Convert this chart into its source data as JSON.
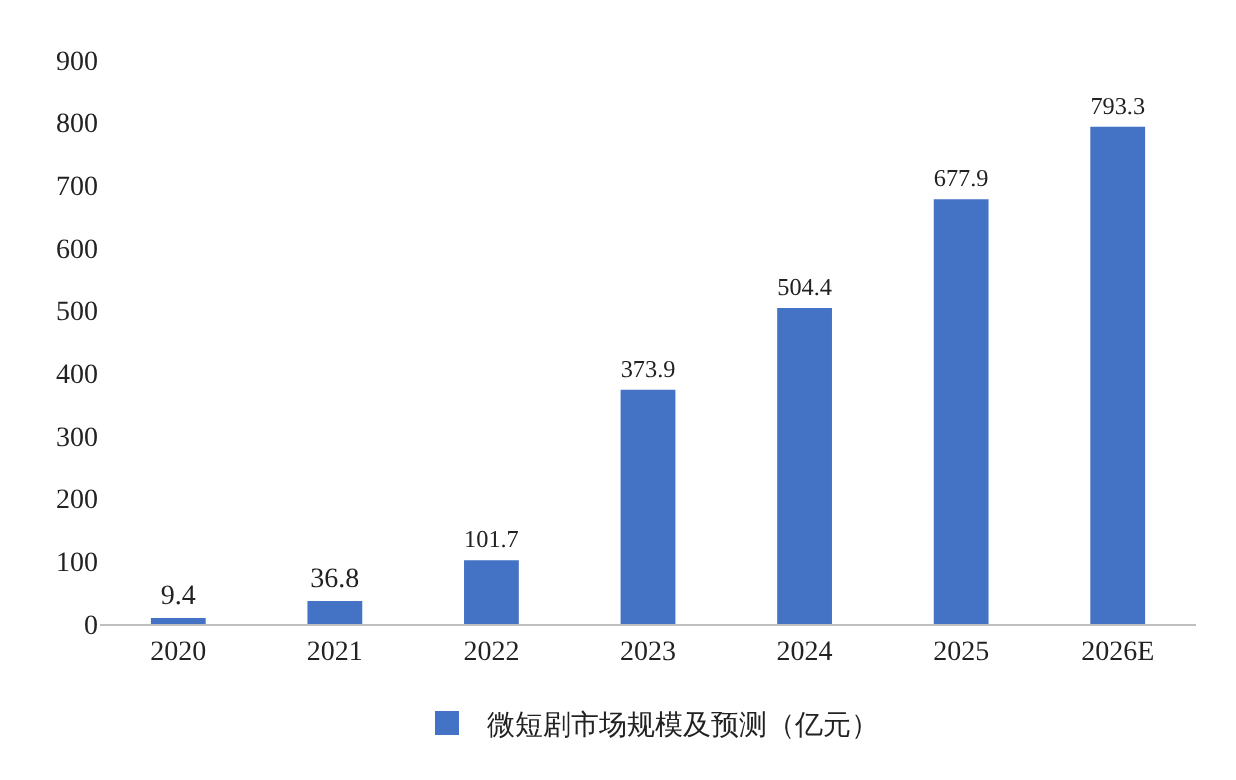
{
  "chart_data": {
    "type": "bar",
    "categories": [
      "2020",
      "2021",
      "2022",
      "2023",
      "2024",
      "2025",
      "2026E"
    ],
    "series": [
      {
        "name": "微短剧市场规模及预测（亿元）",
        "color": "#4472c4",
        "values": [
          9.4,
          36.8,
          101.7,
          373.9,
          504.4,
          677.9,
          793.3
        ]
      }
    ],
    "ylim": [
      0,
      900
    ],
    "yticks": [
      0,
      100,
      200,
      300,
      400,
      500,
      600,
      700,
      800,
      900
    ],
    "grid": false,
    "legend": "bottom",
    "data_labels": true
  }
}
